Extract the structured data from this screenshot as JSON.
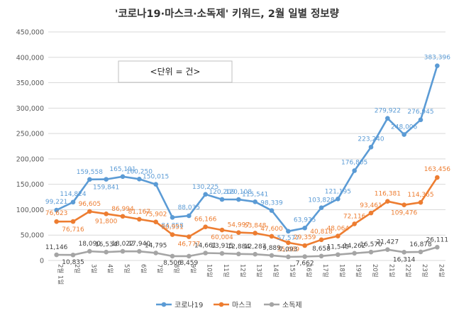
{
  "chart_data": {
    "type": "line",
    "title": "'코로나19·마스크·소독제' 키워드, 2월 일별 정보량",
    "annotation": "<단위 = 건>",
    "xlabel": "",
    "ylabel": "",
    "ylim": [
      0,
      450000
    ],
    "yticks": [
      "0",
      "50,000",
      "100,000",
      "150,000",
      "200,000",
      "250,000",
      "300,000",
      "350,000",
      "400,000",
      "450,000"
    ],
    "grid": true,
    "legend_position": "bottom",
    "categories": [
      "2월 1일",
      "2일",
      "3일",
      "4일",
      "5일",
      "6일",
      "7일",
      "8일",
      "9일",
      "10일",
      "11일",
      "12일",
      "13일",
      "14일",
      "15일",
      "16일",
      "17일",
      "18일",
      "19일",
      "20일",
      "21일",
      "22일",
      "23일",
      "24일"
    ],
    "series": [
      {
        "name": "코로나19",
        "color": "#5B9BD5",
        "values": [
          99221,
          114824,
          159558,
          159841,
          165191,
          160250,
          150015,
          84858,
          88035,
          130225,
          120209,
          120108,
          115541,
          98339,
          57577,
          63935,
          103828,
          121195,
          176805,
          223240,
          279922,
          248006,
          276945,
          383396
        ],
        "labels": [
          "99,221",
          "114,824",
          "159,558",
          "159,841",
          "165,191",
          "160,250",
          "150,015",
          "84,858",
          "88,035",
          "130,225",
          "120,209",
          "120,108",
          "115,541",
          "98,339",
          "57,577",
          "63,935",
          "103,828",
          "121,195",
          "176,805",
          "223,240",
          "279,922",
          "248,006",
          "276,945",
          "383,396"
        ]
      },
      {
        "name": "마스크",
        "color": "#ED7D31",
        "values": [
          76623,
          76716,
          96605,
          91800,
          86994,
          81167,
          75902,
          50951,
          46777,
          66166,
          60004,
          54997,
          53848,
          47600,
          35089,
          29359,
          40818,
          48064,
          72116,
          93461,
          116381,
          109476,
          114365,
          163456
        ],
        "labels": [
          "76,623",
          "76,716",
          "96,605",
          "91,800",
          "86,994",
          "81,167",
          "75,902",
          "50,951",
          "46,777",
          "66,166",
          "60,004",
          "54,997",
          "53,848",
          "47,600",
          "35,089",
          "29,359",
          "40,818",
          "48,064",
          "72,116",
          "93,461",
          "116,381",
          "109,476",
          "114,365",
          "163,456"
        ]
      },
      {
        "name": "소독제",
        "color": "#A5A5A5",
        "values": [
          11146,
          10835,
          18090,
          16534,
          18022,
          17940,
          14795,
          8506,
          8459,
          14661,
          13915,
          12884,
          12287,
          9889,
          7093,
          7662,
          8658,
          11545,
          14262,
          16570,
          21427,
          16314,
          16878,
          26111
        ],
        "labels": [
          "11,146",
          "10,835",
          "18,090",
          "16,534",
          "18,022",
          "17,940",
          "14,795",
          "8,506",
          "8,459",
          "14,661",
          "13,915",
          "12,884",
          "12,287",
          "9,889",
          "7,093",
          "7,662",
          "8,658",
          "11,545",
          "14,262",
          "16,570",
          "21,427",
          "16,314",
          "16,878",
          "26,111"
        ]
      }
    ]
  }
}
